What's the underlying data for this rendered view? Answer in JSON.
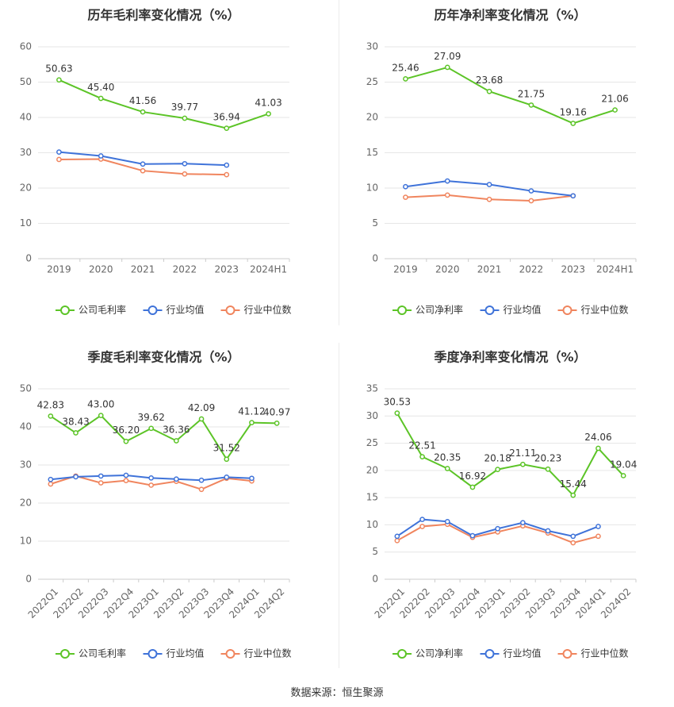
{
  "colors": {
    "company": "#5cc427",
    "avg": "#3f73d9",
    "median": "#f0855e",
    "grid": "#e6e6e6",
    "axis_text": "#666666",
    "title": "#333333",
    "label": "#333333"
  },
  "source_text": "数据来源：恒生聚源",
  "chart_data": [
    {
      "type": "line",
      "title": "历年毛利率变化情况（%）",
      "categories": [
        "2019",
        "2020",
        "2021",
        "2022",
        "2023",
        "2024H1"
      ],
      "ylim": [
        0,
        60
      ],
      "yticks": [
        0,
        10,
        20,
        30,
        40,
        50,
        60
      ],
      "rotate_x": false,
      "legend_position": "bottom",
      "series": [
        {
          "name": "公司毛利率",
          "role": "company",
          "values": [
            50.63,
            45.4,
            41.56,
            39.77,
            36.94,
            41.03
          ],
          "labels": [
            "50.63",
            "45.40",
            "41.56",
            "39.77",
            "36.94",
            "41.03"
          ]
        },
        {
          "name": "行业均值",
          "role": "avg",
          "values": [
            30.2,
            29.1,
            26.8,
            26.9,
            26.5,
            null
          ]
        },
        {
          "name": "行业中位数",
          "role": "median",
          "values": [
            28.1,
            28.2,
            24.9,
            24.0,
            23.8,
            null
          ]
        }
      ]
    },
    {
      "type": "line",
      "title": "历年净利率变化情况（%）",
      "categories": [
        "2019",
        "2020",
        "2021",
        "2022",
        "2023",
        "2024H1"
      ],
      "ylim": [
        0,
        30
      ],
      "yticks": [
        0,
        5,
        10,
        15,
        20,
        25,
        30
      ],
      "rotate_x": false,
      "legend_position": "bottom",
      "series": [
        {
          "name": "公司净利率",
          "role": "company",
          "values": [
            25.46,
            27.09,
            23.68,
            21.75,
            19.16,
            21.06
          ],
          "labels": [
            "25.46",
            "27.09",
            "23.68",
            "21.75",
            "19.16",
            "21.06"
          ]
        },
        {
          "name": "行业均值",
          "role": "avg",
          "values": [
            10.2,
            11.0,
            10.5,
            9.6,
            8.9,
            null
          ]
        },
        {
          "name": "行业中位数",
          "role": "median",
          "values": [
            8.7,
            9.0,
            8.4,
            8.2,
            8.9,
            null
          ]
        }
      ]
    },
    {
      "type": "line",
      "title": "季度毛利率变化情况（%）",
      "categories": [
        "2022Q1",
        "2022Q2",
        "2022Q3",
        "2022Q4",
        "2023Q1",
        "2023Q2",
        "2023Q3",
        "2023Q4",
        "2024Q1",
        "2024Q2"
      ],
      "ylim": [
        0,
        50
      ],
      "yticks": [
        0,
        10,
        20,
        30,
        40,
        50
      ],
      "rotate_x": true,
      "legend_position": "bottom",
      "series": [
        {
          "name": "公司毛利率",
          "role": "company",
          "values": [
            42.83,
            38.43,
            43.0,
            36.2,
            39.62,
            36.36,
            42.09,
            31.52,
            41.12,
            40.97
          ],
          "labels": [
            "42.83",
            "38.43",
            "43.00",
            "36.20",
            "39.62",
            "36.36",
            "42.09",
            "31.52",
            "41.12",
            "40.97"
          ]
        },
        {
          "name": "行业均值",
          "role": "avg",
          "values": [
            26.2,
            26.9,
            27.1,
            27.3,
            26.6,
            26.3,
            26.0,
            26.8,
            26.5,
            null
          ]
        },
        {
          "name": "行业中位数",
          "role": "median",
          "values": [
            25.0,
            27.1,
            25.3,
            25.9,
            24.7,
            25.7,
            23.6,
            26.5,
            25.8,
            null
          ]
        }
      ]
    },
    {
      "type": "line",
      "title": "季度净利率变化情况（%）",
      "categories": [
        "2022Q1",
        "2022Q2",
        "2022Q3",
        "2022Q4",
        "2023Q1",
        "2023Q2",
        "2023Q3",
        "2023Q4",
        "2024Q1",
        "2024Q2"
      ],
      "ylim": [
        0,
        35
      ],
      "yticks": [
        0,
        5,
        10,
        15,
        20,
        25,
        30,
        35
      ],
      "rotate_x": true,
      "legend_position": "bottom",
      "series": [
        {
          "name": "公司净利率",
          "role": "company",
          "values": [
            30.53,
            22.51,
            20.35,
            16.92,
            20.18,
            21.11,
            20.23,
            15.44,
            24.06,
            19.04
          ],
          "labels": [
            "30.53",
            "22.51",
            "20.35",
            "16.92",
            "20.18",
            "21.11",
            "20.23",
            "15.44",
            "24.06",
            "19.04"
          ]
        },
        {
          "name": "行业均值",
          "role": "avg",
          "values": [
            7.9,
            11.0,
            10.6,
            8.0,
            9.3,
            10.4,
            8.9,
            7.9,
            9.7,
            null
          ]
        },
        {
          "name": "行业中位数",
          "role": "median",
          "values": [
            7.1,
            9.7,
            10.1,
            7.7,
            8.7,
            9.8,
            8.5,
            6.7,
            7.9,
            null
          ]
        }
      ]
    }
  ]
}
